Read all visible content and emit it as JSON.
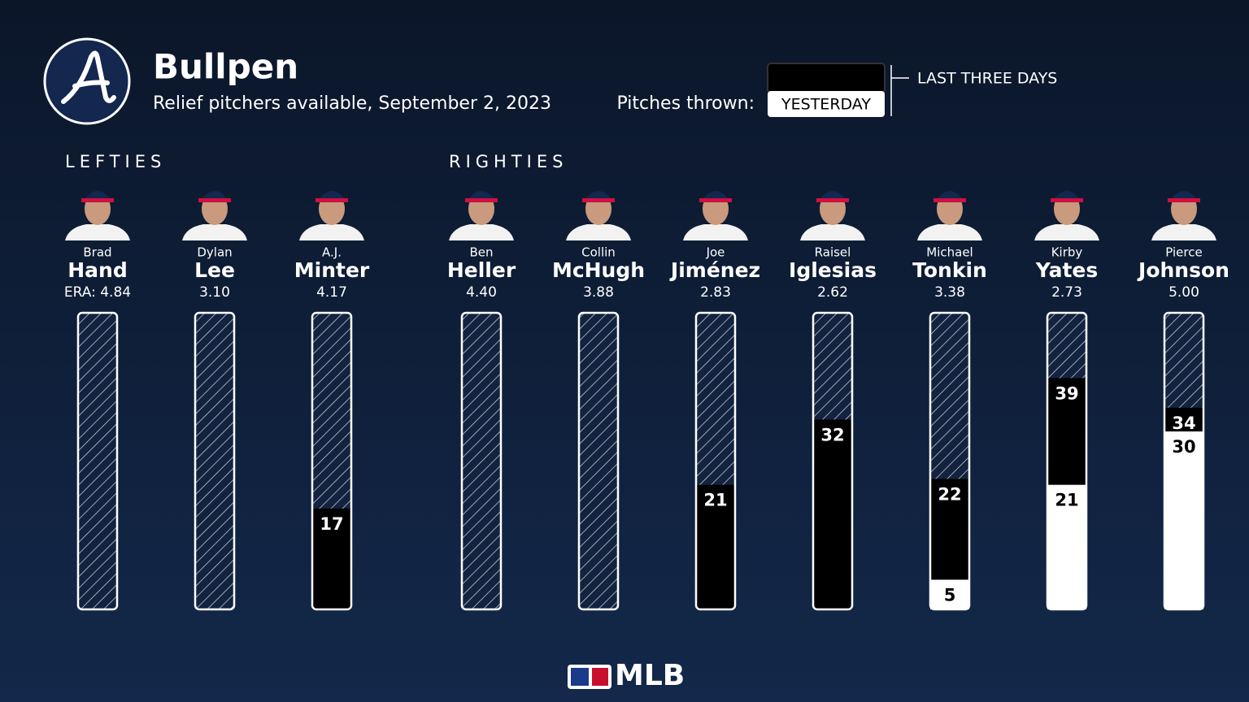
{
  "chart_data": {
    "type": "bar",
    "title": "Bullpen",
    "subtitle": "Relief pitchers available, September 2, 2023",
    "legend_title": "Pitches thrown:",
    "series": [
      {
        "name": "LAST THREE DAYS",
        "color": "#000000"
      },
      {
        "name": "YESTERDAY",
        "color": "#ffffff"
      }
    ],
    "ylim": [
      0,
      50
    ],
    "era_label": "ERA:",
    "groups": [
      {
        "label": "LEFTIES",
        "pitchers": [
          {
            "first": "Brad",
            "last": "Hand",
            "era": "4.84",
            "values": [
              null,
              null
            ]
          },
          {
            "first": "Dylan",
            "last": "Lee",
            "era": "3.10",
            "values": [
              null,
              null
            ]
          },
          {
            "first": "A.J.",
            "last": "Minter",
            "era": "4.17",
            "values": [
              17,
              null
            ]
          }
        ]
      },
      {
        "label": "RIGHTIES",
        "pitchers": [
          {
            "first": "Ben",
            "last": "Heller",
            "era": "4.40",
            "values": [
              null,
              null
            ]
          },
          {
            "first": "Collin",
            "last": "McHugh",
            "era": "3.88",
            "values": [
              null,
              null
            ]
          },
          {
            "first": "Joe",
            "last": "Jiménez",
            "era": "2.83",
            "values": [
              21,
              null
            ]
          },
          {
            "first": "Raisel",
            "last": "Iglesias",
            "era": "2.62",
            "values": [
              32,
              null
            ]
          },
          {
            "first": "Michael",
            "last": "Tonkin",
            "era": "3.38",
            "values": [
              22,
              5
            ]
          },
          {
            "first": "Kirby",
            "last": "Yates",
            "era": "2.73",
            "values": [
              39,
              21
            ]
          },
          {
            "first": "Pierce",
            "last": "Johnson",
            "era": "5.00",
            "values": [
              34,
              30
            ]
          }
        ]
      }
    ],
    "footer": "MLB"
  }
}
